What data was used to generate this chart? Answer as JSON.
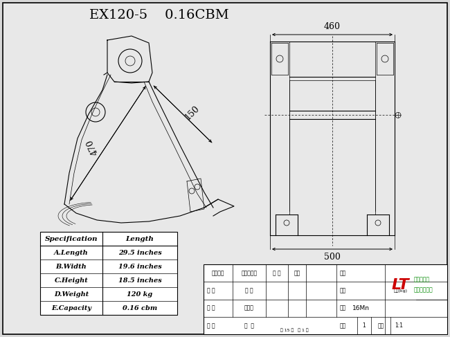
{
  "title": "EX120-5    0.16CBM",
  "title_fontsize": 14,
  "bg_color": "#d8d8d8",
  "paper_color": "#e8e8e8",
  "spec_table": {
    "headers": [
      "Specification",
      "Length"
    ],
    "rows": [
      [
        "A.Length",
        "29.5 inches"
      ],
      [
        "B.Width",
        "19.6 inches"
      ],
      [
        "C.Height",
        "18.5 inches"
      ],
      [
        "D.Weight",
        "120 kg"
      ],
      [
        "E.Capacity",
        "0.16 cbm"
      ]
    ]
  },
  "dim_460": "460",
  "dim_500": "500",
  "dim_470": "470",
  "dim_150": "150",
  "title_block": {
    "drawing_no_label": "图号",
    "name_label": "名称",
    "material_label": "材料",
    "material_value": "16Mn",
    "qty_label": "数量",
    "qty_value": "1",
    "scale_label": "比例",
    "scale_value": "1:1",
    "company_line1": "广州市汇通",
    "company_line2": "机械有限公司",
    "revision_label": "版记处数",
    "change_label": "更改文件号",
    "sign_label": "签 名",
    "date_label": "日期",
    "design_label": "设 计",
    "process_label": "工 艺",
    "check_label": "校 对",
    "std_label": "标准化",
    "approve_label": "审 核",
    "batch_label": "批  准",
    "sheet_info": "共 15 张   第 1 张",
    "weight_label": "重量(kg)"
  }
}
